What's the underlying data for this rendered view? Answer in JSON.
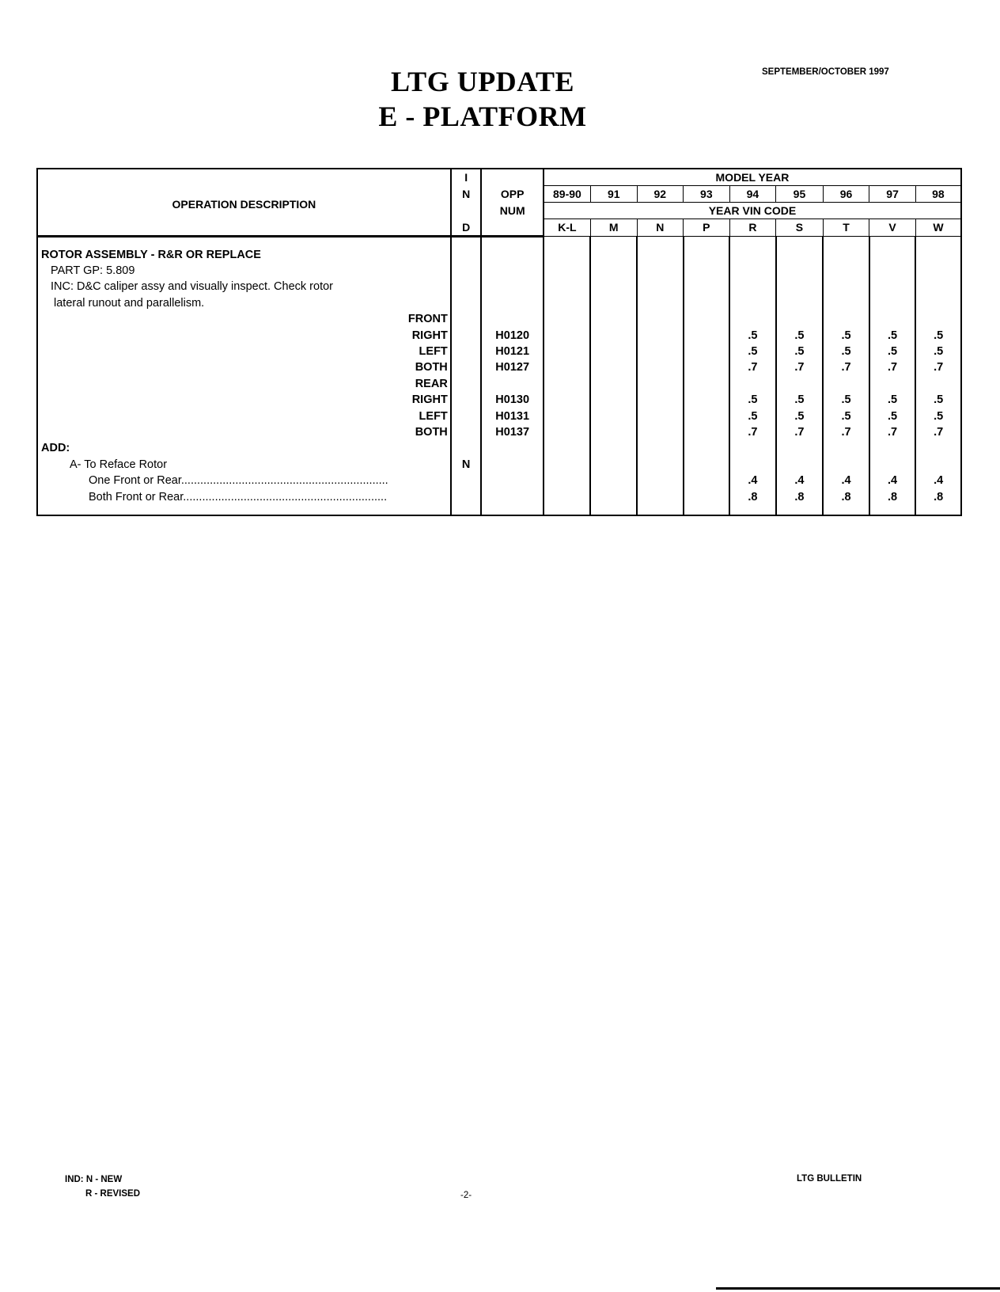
{
  "header": {
    "title_line1": "LTG UPDATE",
    "title_line2": "E - PLATFORM",
    "date": "SEPTEMBER/OCTOBER 1997"
  },
  "table": {
    "col_operation": "OPERATION DESCRIPTION",
    "col_ind": [
      "I",
      "N",
      "D"
    ],
    "col_opp": [
      "OPP",
      "NUM"
    ],
    "model_year_label": "MODEL YEAR",
    "years": [
      "89-90",
      "91",
      "92",
      "93",
      "94",
      "95",
      "96",
      "97",
      "98"
    ],
    "vin_label": "YEAR VIN CODE",
    "vin_codes": [
      "K-L",
      "M",
      "N",
      "P",
      "R",
      "S",
      "T",
      "V",
      "W"
    ],
    "rows": [
      {
        "desc": "ROTOR ASSEMBLY - R&R OR REPLACE",
        "style": "title",
        "ind": "",
        "opp": "",
        "values": [
          "",
          "",
          "",
          "",
          "",
          "",
          "",
          "",
          ""
        ]
      },
      {
        "desc": "PART GP: 5.809",
        "style": "plain",
        "ind": "",
        "opp": "",
        "values": [
          "",
          "",
          "",
          "",
          "",
          "",
          "",
          "",
          ""
        ]
      },
      {
        "desc": "INC: D&C caliper assy and visually inspect. Check rotor",
        "style": "plain",
        "ind": "",
        "opp": "",
        "values": [
          "",
          "",
          "",
          "",
          "",
          "",
          "",
          "",
          ""
        ]
      },
      {
        "desc": "lateral runout and parallelism.",
        "style": "plain2",
        "ind": "",
        "opp": "",
        "values": [
          "",
          "",
          "",
          "",
          "",
          "",
          "",
          "",
          ""
        ]
      },
      {
        "desc": "FRONT",
        "style": "right",
        "ind": "",
        "opp": "",
        "values": [
          "",
          "",
          "",
          "",
          "",
          "",
          "",
          "",
          ""
        ]
      },
      {
        "desc": "RIGHT",
        "style": "right",
        "ind": "",
        "opp": "H0120",
        "values": [
          "",
          "",
          "",
          "",
          ".5",
          ".5",
          ".5",
          ".5",
          ".5"
        ]
      },
      {
        "desc": "LEFT",
        "style": "right",
        "ind": "",
        "opp": "H0121",
        "values": [
          "",
          "",
          "",
          "",
          ".5",
          ".5",
          ".5",
          ".5",
          ".5"
        ]
      },
      {
        "desc": "BOTH",
        "style": "right",
        "ind": "",
        "opp": "H0127",
        "values": [
          "",
          "",
          "",
          "",
          ".7",
          ".7",
          ".7",
          ".7",
          ".7"
        ]
      },
      {
        "desc": "REAR",
        "style": "right",
        "ind": "",
        "opp": "",
        "values": [
          "",
          "",
          "",
          "",
          "",
          "",
          "",
          "",
          ""
        ]
      },
      {
        "desc": "RIGHT",
        "style": "right",
        "ind": "",
        "opp": "H0130",
        "values": [
          "",
          "",
          "",
          "",
          ".5",
          ".5",
          ".5",
          ".5",
          ".5"
        ]
      },
      {
        "desc": "LEFT",
        "style": "right",
        "ind": "",
        "opp": "H0131",
        "values": [
          "",
          "",
          "",
          "",
          ".5",
          ".5",
          ".5",
          ".5",
          ".5"
        ]
      },
      {
        "desc": "BOTH",
        "style": "right",
        "ind": "",
        "opp": "H0137",
        "values": [
          "",
          "",
          "",
          "",
          ".7",
          ".7",
          ".7",
          ".7",
          ".7"
        ]
      },
      {
        "desc": "ADD:",
        "style": "add",
        "ind": "",
        "opp": "",
        "values": [
          "",
          "",
          "",
          "",
          "",
          "",
          "",
          "",
          ""
        ]
      },
      {
        "desc": "A- To Reface Rotor",
        "style": "ind1",
        "ind": "N",
        "opp": "",
        "values": [
          "",
          "",
          "",
          "",
          "",
          "",
          "",
          "",
          ""
        ]
      },
      {
        "desc": "One Front or Rear.................................................................",
        "style": "ind2",
        "ind": "",
        "opp": "",
        "values": [
          "",
          "",
          "",
          "",
          ".4",
          ".4",
          ".4",
          ".4",
          ".4"
        ]
      },
      {
        "desc": "Both Front or Rear................................................................",
        "style": "ind2",
        "ind": "",
        "opp": "",
        "values": [
          "",
          "",
          "",
          "",
          ".8",
          ".8",
          ".8",
          ".8",
          ".8"
        ]
      }
    ]
  },
  "footer": {
    "ind_legend_1": "IND: N - NEW",
    "ind_legend_2": "R - REVISED",
    "page_number": "-2-",
    "bulletin": "LTG BULLETIN"
  }
}
